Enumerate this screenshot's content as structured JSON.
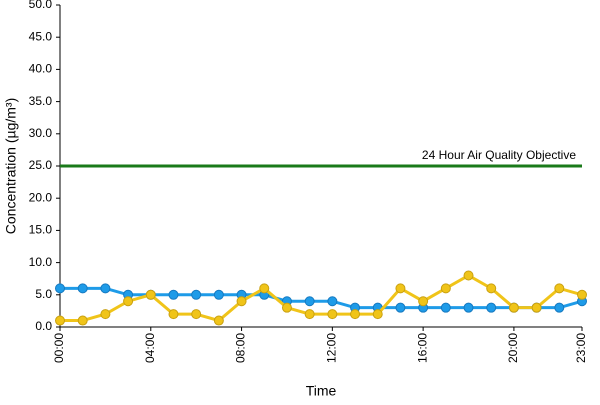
{
  "chart_data": {
    "type": "line",
    "x_label": "Time",
    "y_label": "Concentration (µg/m³)",
    "categories": [
      "00:00",
      null,
      null,
      null,
      "04:00",
      null,
      null,
      null,
      "08:00",
      null,
      null,
      null,
      "12:00",
      null,
      null,
      null,
      "16:00",
      null,
      null,
      null,
      "20:00",
      null,
      null,
      "23:00"
    ],
    "series": [
      {
        "color": "#1e9be8",
        "values": [
          6,
          6,
          6,
          5,
          5,
          5,
          5,
          5,
          5,
          5,
          4,
          4,
          4,
          3,
          3,
          3,
          3,
          3,
          3,
          3,
          3,
          3,
          3,
          4
        ]
      },
      {
        "color": "#f0c419",
        "values": [
          1,
          1,
          2,
          4,
          5,
          2,
          2,
          1,
          4,
          6,
          3,
          2,
          2,
          2,
          2,
          6,
          4,
          6,
          8,
          6,
          3,
          3,
          6,
          5
        ]
      }
    ],
    "objective": {
      "value": 25,
      "label": "24 Hour Air Quality Objective",
      "color": "#1a7a1a"
    },
    "ylim": [
      0,
      50
    ],
    "yticks": [
      {
        "value": 0,
        "label": "0.0"
      },
      {
        "value": 5,
        "label": "5.0"
      },
      {
        "value": 10,
        "label": "10.0"
      },
      {
        "value": 15,
        "label": "15.0"
      },
      {
        "value": 20,
        "label": "20.0"
      },
      {
        "value": 25,
        "label": "25.0"
      },
      {
        "value": 30,
        "label": "30.0"
      },
      {
        "value": 35,
        "label": "35.0"
      },
      {
        "value": 40,
        "label": "40.0"
      },
      {
        "value": 45,
        "label": "45.0"
      },
      {
        "value": 50,
        "label": "50.0"
      }
    ],
    "grid": false
  }
}
